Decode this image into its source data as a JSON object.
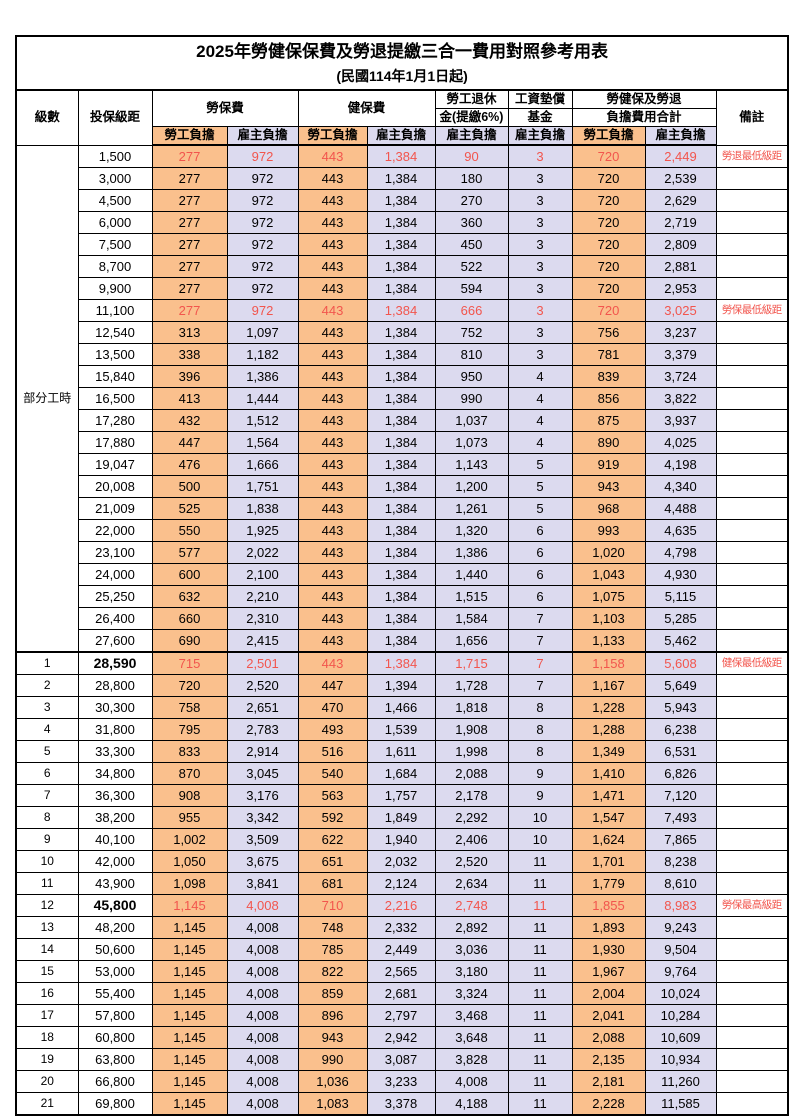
{
  "title": "2025年勞健保保費及勞退提繳三合一費用對照參考用表",
  "subtitle": "(民國114年1月1日起)",
  "header": {
    "level": "級數",
    "bracket": "投保級距",
    "labor_fee": "勞保費",
    "health_fee": "健保費",
    "pension_line1": "勞工退休",
    "pension_line2": "金(提繳6%)",
    "wage_fund_line1": "工資墊償",
    "wage_fund_line2": "基金",
    "total_line1": "勞健保及勞退",
    "total_line2": "負擔費用合計",
    "remark": "備註",
    "employee_share": "勞工負擔",
    "employer_share": "雇主負擔"
  },
  "part_time": {
    "label": "部分工時",
    "rowspan": 23
  },
  "colors": {
    "employee_bg": "#fac08d",
    "employer_bg": "#dcdaef",
    "highlight_red": "#f2554d"
  },
  "rows": [
    {
      "level": "",
      "bracket": "1,500",
      "values": [
        "277",
        "972",
        "443",
        "1,384",
        "90",
        "3",
        "720",
        "2,449"
      ],
      "remark": "勞退最低級距",
      "red": true
    },
    {
      "level": "",
      "bracket": "3,000",
      "values": [
        "277",
        "972",
        "443",
        "1,384",
        "180",
        "3",
        "720",
        "2,539"
      ],
      "remark": ""
    },
    {
      "level": "",
      "bracket": "4,500",
      "values": [
        "277",
        "972",
        "443",
        "1,384",
        "270",
        "3",
        "720",
        "2,629"
      ],
      "remark": ""
    },
    {
      "level": "",
      "bracket": "6,000",
      "values": [
        "277",
        "972",
        "443",
        "1,384",
        "360",
        "3",
        "720",
        "2,719"
      ],
      "remark": ""
    },
    {
      "level": "",
      "bracket": "7,500",
      "values": [
        "277",
        "972",
        "443",
        "1,384",
        "450",
        "3",
        "720",
        "2,809"
      ],
      "remark": ""
    },
    {
      "level": "",
      "bracket": "8,700",
      "values": [
        "277",
        "972",
        "443",
        "1,384",
        "522",
        "3",
        "720",
        "2,881"
      ],
      "remark": ""
    },
    {
      "level": "",
      "bracket": "9,900",
      "values": [
        "277",
        "972",
        "443",
        "1,384",
        "594",
        "3",
        "720",
        "2,953"
      ],
      "remark": ""
    },
    {
      "level": "",
      "bracket": "11,100",
      "values": [
        "277",
        "972",
        "443",
        "1,384",
        "666",
        "3",
        "720",
        "3,025"
      ],
      "remark": "勞保最低級距",
      "red": true
    },
    {
      "level": "",
      "bracket": "12,540",
      "values": [
        "313",
        "1,097",
        "443",
        "1,384",
        "752",
        "3",
        "756",
        "3,237"
      ],
      "remark": ""
    },
    {
      "level": "",
      "bracket": "13,500",
      "values": [
        "338",
        "1,182",
        "443",
        "1,384",
        "810",
        "3",
        "781",
        "3,379"
      ],
      "remark": ""
    },
    {
      "level": "",
      "bracket": "15,840",
      "values": [
        "396",
        "1,386",
        "443",
        "1,384",
        "950",
        "4",
        "839",
        "3,724"
      ],
      "remark": ""
    },
    {
      "level": "",
      "bracket": "16,500",
      "values": [
        "413",
        "1,444",
        "443",
        "1,384",
        "990",
        "4",
        "856",
        "3,822"
      ],
      "remark": ""
    },
    {
      "level": "",
      "bracket": "17,280",
      "values": [
        "432",
        "1,512",
        "443",
        "1,384",
        "1,037",
        "4",
        "875",
        "3,937"
      ],
      "remark": ""
    },
    {
      "level": "",
      "bracket": "17,880",
      "values": [
        "447",
        "1,564",
        "443",
        "1,384",
        "1,073",
        "4",
        "890",
        "4,025"
      ],
      "remark": ""
    },
    {
      "level": "",
      "bracket": "19,047",
      "values": [
        "476",
        "1,666",
        "443",
        "1,384",
        "1,143",
        "5",
        "919",
        "4,198"
      ],
      "remark": ""
    },
    {
      "level": "",
      "bracket": "20,008",
      "values": [
        "500",
        "1,751",
        "443",
        "1,384",
        "1,200",
        "5",
        "943",
        "4,340"
      ],
      "remark": ""
    },
    {
      "level": "",
      "bracket": "21,009",
      "values": [
        "525",
        "1,838",
        "443",
        "1,384",
        "1,261",
        "5",
        "968",
        "4,488"
      ],
      "remark": ""
    },
    {
      "level": "",
      "bracket": "22,000",
      "values": [
        "550",
        "1,925",
        "443",
        "1,384",
        "1,320",
        "6",
        "993",
        "4,635"
      ],
      "remark": ""
    },
    {
      "level": "",
      "bracket": "23,100",
      "values": [
        "577",
        "2,022",
        "443",
        "1,384",
        "1,386",
        "6",
        "1,020",
        "4,798"
      ],
      "remark": ""
    },
    {
      "level": "",
      "bracket": "24,000",
      "values": [
        "600",
        "2,100",
        "443",
        "1,384",
        "1,440",
        "6",
        "1,043",
        "4,930"
      ],
      "remark": ""
    },
    {
      "level": "",
      "bracket": "25,250",
      "values": [
        "632",
        "2,210",
        "443",
        "1,384",
        "1,515",
        "6",
        "1,075",
        "5,115"
      ],
      "remark": ""
    },
    {
      "level": "",
      "bracket": "26,400",
      "values": [
        "660",
        "2,310",
        "443",
        "1,384",
        "1,584",
        "7",
        "1,103",
        "5,285"
      ],
      "remark": ""
    },
    {
      "level": "",
      "bracket": "27,600",
      "values": [
        "690",
        "2,415",
        "443",
        "1,384",
        "1,656",
        "7",
        "1,133",
        "5,462"
      ],
      "remark": ""
    },
    {
      "level": "1",
      "bracket": "28,590",
      "values": [
        "715",
        "2,501",
        "443",
        "1,384",
        "1,715",
        "7",
        "1,158",
        "5,608"
      ],
      "remark": "健保最低級距",
      "red": true,
      "bold_bracket": true,
      "section_start": true
    },
    {
      "level": "2",
      "bracket": "28,800",
      "values": [
        "720",
        "2,520",
        "447",
        "1,394",
        "1,728",
        "7",
        "1,167",
        "5,649"
      ],
      "remark": ""
    },
    {
      "level": "3",
      "bracket": "30,300",
      "values": [
        "758",
        "2,651",
        "470",
        "1,466",
        "1,818",
        "8",
        "1,228",
        "5,943"
      ],
      "remark": ""
    },
    {
      "level": "4",
      "bracket": "31,800",
      "values": [
        "795",
        "2,783",
        "493",
        "1,539",
        "1,908",
        "8",
        "1,288",
        "6,238"
      ],
      "remark": ""
    },
    {
      "level": "5",
      "bracket": "33,300",
      "values": [
        "833",
        "2,914",
        "516",
        "1,611",
        "1,998",
        "8",
        "1,349",
        "6,531"
      ],
      "remark": ""
    },
    {
      "level": "6",
      "bracket": "34,800",
      "values": [
        "870",
        "3,045",
        "540",
        "1,684",
        "2,088",
        "9",
        "1,410",
        "6,826"
      ],
      "remark": ""
    },
    {
      "level": "7",
      "bracket": "36,300",
      "values": [
        "908",
        "3,176",
        "563",
        "1,757",
        "2,178",
        "9",
        "1,471",
        "7,120"
      ],
      "remark": ""
    },
    {
      "level": "8",
      "bracket": "38,200",
      "values": [
        "955",
        "3,342",
        "592",
        "1,849",
        "2,292",
        "10",
        "1,547",
        "7,493"
      ],
      "remark": ""
    },
    {
      "level": "9",
      "bracket": "40,100",
      "values": [
        "1,002",
        "3,509",
        "622",
        "1,940",
        "2,406",
        "10",
        "1,624",
        "7,865"
      ],
      "remark": ""
    },
    {
      "level": "10",
      "bracket": "42,000",
      "values": [
        "1,050",
        "3,675",
        "651",
        "2,032",
        "2,520",
        "11",
        "1,701",
        "8,238"
      ],
      "remark": ""
    },
    {
      "level": "11",
      "bracket": "43,900",
      "values": [
        "1,098",
        "3,841",
        "681",
        "2,124",
        "2,634",
        "11",
        "1,779",
        "8,610"
      ],
      "remark": ""
    },
    {
      "level": "12",
      "bracket": "45,800",
      "values": [
        "1,145",
        "4,008",
        "710",
        "2,216",
        "2,748",
        "11",
        "1,855",
        "8,983"
      ],
      "remark": "勞保最高級距",
      "red": true,
      "bold_bracket": true
    },
    {
      "level": "13",
      "bracket": "48,200",
      "values": [
        "1,145",
        "4,008",
        "748",
        "2,332",
        "2,892",
        "11",
        "1,893",
        "9,243"
      ],
      "remark": ""
    },
    {
      "level": "14",
      "bracket": "50,600",
      "values": [
        "1,145",
        "4,008",
        "785",
        "2,449",
        "3,036",
        "11",
        "1,930",
        "9,504"
      ],
      "remark": ""
    },
    {
      "level": "15",
      "bracket": "53,000",
      "values": [
        "1,145",
        "4,008",
        "822",
        "2,565",
        "3,180",
        "11",
        "1,967",
        "9,764"
      ],
      "remark": ""
    },
    {
      "level": "16",
      "bracket": "55,400",
      "values": [
        "1,145",
        "4,008",
        "859",
        "2,681",
        "3,324",
        "11",
        "2,004",
        "10,024"
      ],
      "remark": ""
    },
    {
      "level": "17",
      "bracket": "57,800",
      "values": [
        "1,145",
        "4,008",
        "896",
        "2,797",
        "3,468",
        "11",
        "2,041",
        "10,284"
      ],
      "remark": ""
    },
    {
      "level": "18",
      "bracket": "60,800",
      "values": [
        "1,145",
        "4,008",
        "943",
        "2,942",
        "3,648",
        "11",
        "2,088",
        "10,609"
      ],
      "remark": ""
    },
    {
      "level": "19",
      "bracket": "63,800",
      "values": [
        "1,145",
        "4,008",
        "990",
        "3,087",
        "3,828",
        "11",
        "2,135",
        "10,934"
      ],
      "remark": ""
    },
    {
      "level": "20",
      "bracket": "66,800",
      "values": [
        "1,145",
        "4,008",
        "1,036",
        "3,233",
        "4,008",
        "11",
        "2,181",
        "11,260"
      ],
      "remark": ""
    },
    {
      "level": "21",
      "bracket": "69,800",
      "values": [
        "1,145",
        "4,008",
        "1,083",
        "3,378",
        "4,188",
        "11",
        "2,228",
        "11,585"
      ],
      "remark": ""
    }
  ]
}
